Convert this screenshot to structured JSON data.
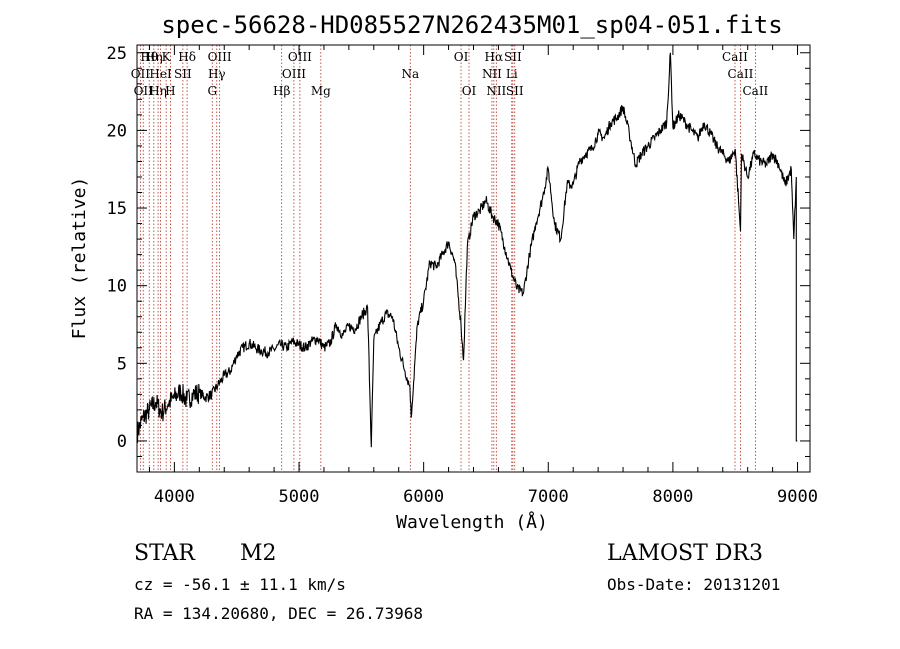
{
  "info": {
    "object_class": "STAR",
    "subclass": "M2",
    "survey": "LAMOST DR3",
    "cz": "cz = -56.1 ± 11.1 km/s",
    "obs_date": "Obs-Date: 20131201",
    "radec": "RA = 134.20680, DEC =  26.73968"
  },
  "colors": {
    "line": "#000000",
    "marker": "#b03020"
  },
  "chart_data": {
    "type": "line",
    "title": "spec-56628-HD085527N262435M01_sp04-051.fits",
    "xlabel": "Wavelength (Å)",
    "ylabel": "Flux (relative)",
    "xlim": [
      3700,
      9100
    ],
    "ylim": [
      -2,
      25.5
    ],
    "xticks": [
      4000,
      5000,
      6000,
      7000,
      8000,
      9000
    ],
    "yticks": [
      0,
      5,
      10,
      15,
      20,
      25
    ],
    "grid": false,
    "series": [
      {
        "x": [
          3700,
          3750,
          3800,
          3850,
          3900,
          3950,
          4000,
          4050,
          4100,
          4150,
          4200,
          4250,
          4300,
          4350,
          4400,
          4450,
          4500,
          4550,
          4600,
          4650,
          4700,
          4750,
          4800,
          4850,
          4900,
          4950,
          5000,
          5050,
          5100,
          5150,
          5200,
          5250,
          5300,
          5350,
          5400,
          5450,
          5500,
          5550,
          5580,
          5600,
          5650,
          5700,
          5750,
          5800,
          5850,
          5890,
          5900,
          5950,
          6000,
          6050,
          6100,
          6150,
          6200,
          6250,
          6300,
          6320,
          6350,
          6400,
          6450,
          6500,
          6550,
          6600,
          6650,
          6700,
          6750,
          6800,
          6850,
          6900,
          6950,
          7000,
          7050,
          7100,
          7150,
          7200,
          7250,
          7300,
          7350,
          7400,
          7450,
          7500,
          7550,
          7600,
          7650,
          7700,
          7750,
          7800,
          7850,
          7900,
          7950,
          7980,
          8000,
          8050,
          8100,
          8150,
          8200,
          8250,
          8300,
          8350,
          8400,
          8450,
          8500,
          8542,
          8550,
          8600,
          8650,
          8700,
          8750,
          8800,
          8850,
          8900,
          8950,
          8960,
          8970,
          8990
        ],
        "y": [
          0.5,
          1.5,
          2.0,
          2.5,
          1.8,
          2.4,
          2.8,
          3.2,
          2.6,
          3.0,
          3.1,
          2.8,
          3.0,
          3.6,
          4.2,
          4.5,
          5.5,
          6.0,
          6.3,
          6.0,
          5.8,
          5.7,
          5.9,
          6.2,
          6.0,
          6.4,
          6.2,
          6.0,
          6.4,
          6.6,
          6.0,
          6.3,
          7.5,
          6.8,
          7.4,
          7.2,
          8.0,
          8.6,
          -0.4,
          6.5,
          7.5,
          8.2,
          8.0,
          6.0,
          4.5,
          3.5,
          1.5,
          7.5,
          9.0,
          11.5,
          11.2,
          12.0,
          12.8,
          11.5,
          7.5,
          5.2,
          12.5,
          14.5,
          14.8,
          15.5,
          14.5,
          14.0,
          12.5,
          11.0,
          9.8,
          9.5,
          12.0,
          14.0,
          15.5,
          17.5,
          14.0,
          13.0,
          16.5,
          16.5,
          18.0,
          18.5,
          18.8,
          19.8,
          19.5,
          20.5,
          20.8,
          21.5,
          19.8,
          17.8,
          18.5,
          19.0,
          19.5,
          20.0,
          20.5,
          25.0,
          20.2,
          21.0,
          20.5,
          20.0,
          19.5,
          20.5,
          19.8,
          19.0,
          18.5,
          18.0,
          18.8,
          13.5,
          18.5,
          17.0,
          18.5,
          18.0,
          17.8,
          18.5,
          17.8,
          16.5,
          17.5,
          15.0,
          13.0,
          17.0
        ]
      }
    ],
    "line_markers": [
      {
        "wl": 3727,
        "row": 1,
        "label": "OII"
      },
      {
        "wl": 3750,
        "row": 2,
        "label": "OII"
      },
      {
        "wl": 3798,
        "row": 0,
        "label": "Hθ"
      },
      {
        "wl": 3835,
        "row": 0,
        "label": "Hη"
      },
      {
        "wl": 3869,
        "row": 2,
        "label": "Hη"
      },
      {
        "wl": 3889,
        "row": 1,
        "label": "HeI"
      },
      {
        "wl": 3934,
        "row": 0,
        "label": "K"
      },
      {
        "wl": 3968,
        "row": 2,
        "label": "H"
      },
      {
        "wl": 4068,
        "row": 1,
        "label": "SII"
      },
      {
        "wl": 4102,
        "row": 0,
        "label": "Hδ"
      },
      {
        "wl": 4304,
        "row": 2,
        "label": "G"
      },
      {
        "wl": 4340,
        "row": 1,
        "label": "Hγ"
      },
      {
        "wl": 4363,
        "row": 0,
        "label": "OIII"
      },
      {
        "wl": 4861,
        "row": 2,
        "label": "Hβ"
      },
      {
        "wl": 4959,
        "row": 1,
        "label": "OIII"
      },
      {
        "wl": 5007,
        "row": 0,
        "label": "OIII"
      },
      {
        "wl": 5175,
        "row": 2,
        "label": "Mg"
      },
      {
        "wl": 5893,
        "row": 1,
        "label": "Na"
      },
      {
        "wl": 6300,
        "row": 0,
        "label": "OI"
      },
      {
        "wl": 6364,
        "row": 2,
        "label": "OI"
      },
      {
        "wl": 6548,
        "row": 1,
        "label": "NII"
      },
      {
        "wl": 6563,
        "row": 0,
        "label": "Hα"
      },
      {
        "wl": 6583,
        "row": 2,
        "label": "NII"
      },
      {
        "wl": 6707,
        "row": 1,
        "label": "Li"
      },
      {
        "wl": 6716,
        "row": 0,
        "label": "SII"
      },
      {
        "wl": 6731,
        "row": 2,
        "label": "SII"
      },
      {
        "wl": 8498,
        "row": 0,
        "label": "CaII"
      },
      {
        "wl": 8542,
        "row": 1,
        "label": "CaII"
      },
      {
        "wl": 8662,
        "row": 2,
        "label": "CaII"
      }
    ]
  }
}
